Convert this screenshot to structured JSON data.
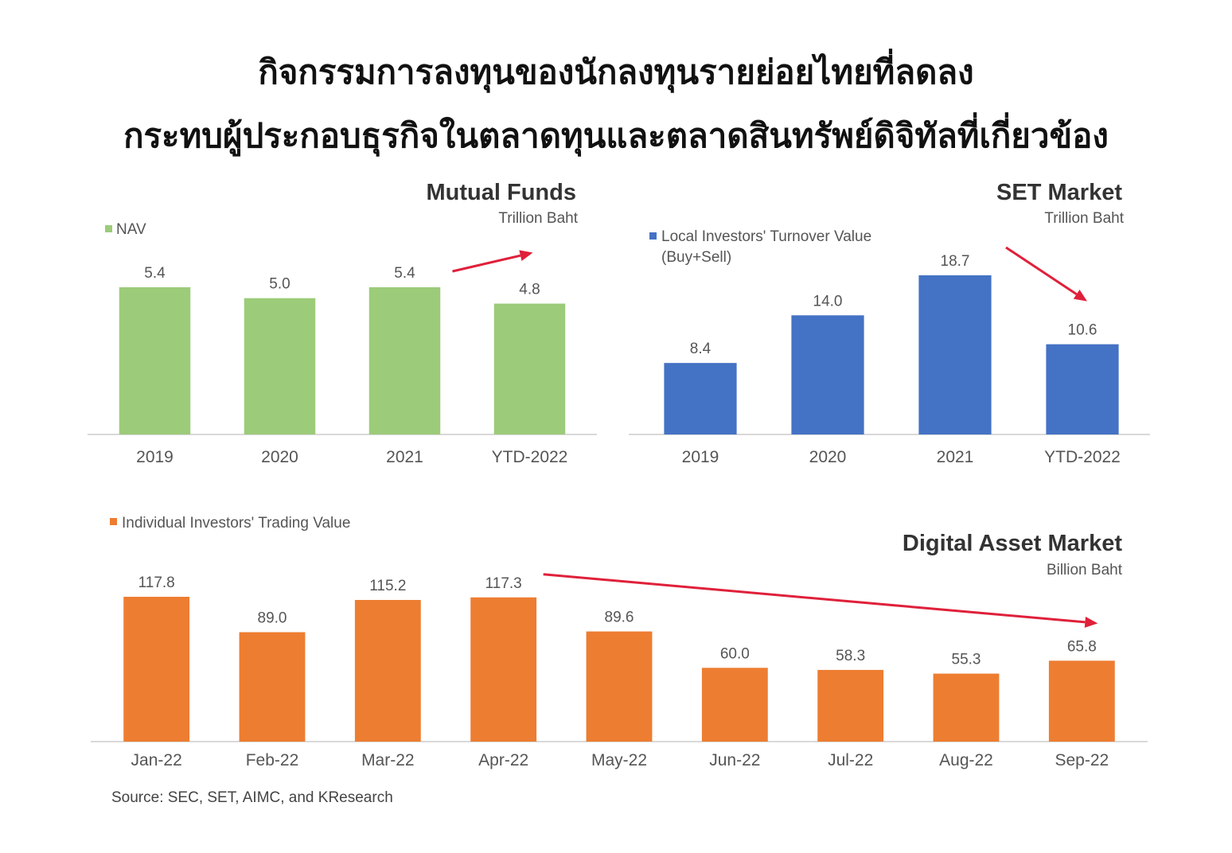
{
  "headline": {
    "line1": "กิจกรรมการลงทุนของนักลงทุนรายย่อยไทยที่ลดลง",
    "line2": "กระทบผู้ประกอบธุรกิจในตลาดทุนและตลาดสินทรัพย์ดิจิทัลที่เกี่ยวข้อง"
  },
  "source": "Source: SEC, SET, AIMC, and KResearch",
  "colors": {
    "green": "#9ccb79",
    "blue": "#4472c4",
    "orange": "#ed7d31",
    "arrow": "#e0203a"
  },
  "chart_data": [
    {
      "id": "mutual-funds",
      "type": "bar",
      "title": "Mutual Funds",
      "subtitle": "Trillion Baht",
      "legend": "NAV",
      "categories": [
        "2019",
        "2020",
        "2021",
        "YTD-2022"
      ],
      "values": [
        5.4,
        5.0,
        5.4,
        4.8
      ],
      "labels": [
        "5.4",
        "5.0",
        "5.4",
        "4.8"
      ],
      "color": "#9ccb79",
      "trend_arrow": {
        "from": "2021",
        "to": "YTD-2022",
        "direction": "down"
      }
    },
    {
      "id": "set-market",
      "type": "bar",
      "title": "SET Market",
      "subtitle": "Trillion Baht",
      "legend": "Local Investors' Turnover Value (Buy+Sell)",
      "legend_lines": [
        "Local Investors' Turnover Value",
        "(Buy+Sell)"
      ],
      "categories": [
        "2019",
        "2020",
        "2021",
        "YTD-2022"
      ],
      "values": [
        8.4,
        14.0,
        18.7,
        10.6
      ],
      "labels": [
        "8.4",
        "14.0",
        "18.7",
        "10.6"
      ],
      "color": "#4472c4",
      "trend_arrow": {
        "from": "2021",
        "to": "YTD-2022",
        "direction": "down"
      }
    },
    {
      "id": "digital-asset-market",
      "type": "bar",
      "title": "Digital Asset Market",
      "subtitle": "Billion Baht",
      "legend": "Individual Investors' Trading Value",
      "categories": [
        "Jan-22",
        "Feb-22",
        "Mar-22",
        "Apr-22",
        "May-22",
        "Jun-22",
        "Jul-22",
        "Aug-22",
        "Sep-22"
      ],
      "values": [
        117.8,
        89.0,
        115.2,
        117.3,
        89.6,
        60.0,
        58.3,
        55.3,
        65.8
      ],
      "labels": [
        "117.8",
        "89.0",
        "115.2",
        "117.3",
        "89.6",
        "60.0",
        "58.3",
        "55.3",
        "65.8"
      ],
      "color": "#ed7d31",
      "trend_arrow": {
        "from": "Apr-22",
        "to": "Sep-22",
        "direction": "down"
      }
    }
  ]
}
